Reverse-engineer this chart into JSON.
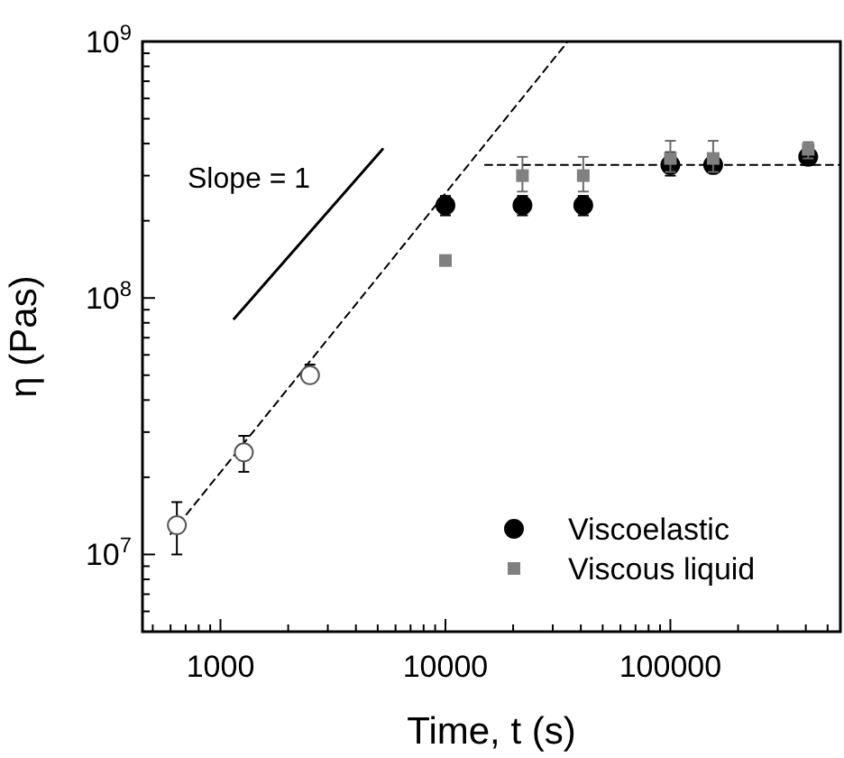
{
  "chart_data": {
    "type": "scatter",
    "xlabel": "Time, t (s)",
    "ylabel": "η (Pas)",
    "log": "xy",
    "grid": false,
    "legend": "bottom right",
    "xlim": [
      450,
      570000
    ],
    "ylim": [
      5000000.0,
      1000000000.0
    ],
    "xticks": [
      {
        "value": 500,
        "label": null
      },
      {
        "value": 600,
        "label": null
      },
      {
        "value": 700,
        "label": null
      },
      {
        "value": 800,
        "label": null
      },
      {
        "value": 900,
        "label": null
      },
      1000,
      {
        "value": 2000,
        "label": null
      },
      {
        "value": 3000,
        "label": null
      },
      {
        "value": 4000,
        "label": null
      },
      {
        "value": 5000,
        "label": null
      },
      {
        "value": 6000,
        "label": null
      },
      {
        "value": 7000,
        "label": null
      },
      {
        "value": 8000,
        "label": null
      },
      {
        "value": 9000,
        "label": null
      },
      10000,
      {
        "value": 20000,
        "label": null
      },
      {
        "value": 30000,
        "label": null
      },
      {
        "value": 40000,
        "label": null
      },
      {
        "value": 50000,
        "label": null
      },
      {
        "value": 60000,
        "label": null
      },
      {
        "value": 70000,
        "label": null
      },
      {
        "value": 80000,
        "label": null
      },
      {
        "value": 90000,
        "label": null
      },
      100000,
      {
        "value": 200000,
        "label": null
      },
      {
        "value": 300000,
        "label": null
      },
      {
        "value": 400000,
        "label": null
      },
      {
        "value": 500000,
        "label": null
      }
    ],
    "yticks": [
      {
        "value": 6000000.0,
        "label": null
      },
      {
        "value": 7000000.0,
        "label": null
      },
      {
        "value": 8000000.0,
        "label": null
      },
      {
        "value": 9000000.0,
        "label": null
      },
      {
        "value": 10000000.0,
        "label": "10$^{7}$"
      },
      {
        "value": 20000000.0,
        "label": null
      },
      {
        "value": 30000000.0,
        "label": null
      },
      {
        "value": 40000000.0,
        "label": null
      },
      {
        "value": 50000000.0,
        "label": null
      },
      {
        "value": 60000000.0,
        "label": null
      },
      {
        "value": 70000000.0,
        "label": null
      },
      {
        "value": 80000000.0,
        "label": null
      },
      {
        "value": 90000000.0,
        "label": null
      },
      {
        "value": 100000000.0,
        "label": "10$^{8}$"
      },
      {
        "value": 200000000.0,
        "label": null
      },
      {
        "value": 300000000.0,
        "label": null
      },
      {
        "value": 400000000.0,
        "label": null
      },
      {
        "value": 500000000.0,
        "label": null
      },
      {
        "value": 600000000.0,
        "label": null
      },
      {
        "value": 700000000.0,
        "label": null
      },
      {
        "value": 800000000.0,
        "label": null
      },
      {
        "value": 900000000.0,
        "label": null
      },
      {
        "value": 1000000000.0,
        "label": "10$^{9}$"
      }
    ],
    "annotations": [
      "Slope = 1"
    ],
    "series": [
      {
        "type": "line",
        "color": "#000000",
        "line_style": "dashed",
        "marker": "none",
        "x": [
          600,
          35000
        ],
        "values": [
          12000000.0,
          1000000000.0
        ]
      },
      {
        "type": "line",
        "color": "#000000",
        "line_style": "dashed",
        "marker": "none",
        "x": [
          15000,
          570000
        ],
        "values": [
          330000000.0,
          330000000.0
        ]
      },
      {
        "type": "line",
        "color": "#000000",
        "line_style": "solid",
        "marker": "none",
        "x": [
          1150,
          5250
        ],
        "values": [
          83000000.0,
          380000000.0
        ]
      },
      {
        "color": "#ffffff",
        "marker": "circle",
        "x": [
          640,
          1270,
          2500
        ],
        "values": [
          13000000.0,
          25000000.0,
          50000000.0
        ],
        "errors": [
          [
            10000000.0,
            16000000.0
          ],
          [
            21000000.0,
            29000000.0
          ],
          [
            47000000.0,
            55000000.0
          ]
        ]
      },
      {
        "name": "Viscoelastic",
        "color": "#000000",
        "marker": "circle",
        "x": [
          10000,
          22000,
          41000,
          100000,
          155000,
          410000
        ],
        "values": [
          230000000.0,
          230000000.0,
          230000000.0,
          330000000.0,
          330000000.0,
          355000000.0
        ],
        "errors": [
          [
            210000000.0,
            250000000.0
          ],
          [
            210000000.0,
            250000000.0
          ],
          [
            210000000.0,
            250000000.0
          ],
          [
            300000000.0,
            370000000.0
          ],
          [
            310000000.0,
            330000000.0
          ],
          [
            330000000.0,
            355000000.0
          ]
        ]
      },
      {
        "name": "Viscous liquid",
        "color": "#808080",
        "marker": "square",
        "x": [
          10000,
          22000,
          41000,
          100000,
          155000,
          410000
        ],
        "values": [
          140000000.0,
          300000000.0,
          300000000.0,
          350000000.0,
          350000000.0,
          380000000.0
        ],
        "errors": [
          null,
          [
            260000000.0,
            355000000.0
          ],
          [
            260000000.0,
            355000000.0
          ],
          [
            310000000.0,
            410000000.0
          ],
          [
            310000000.0,
            410000000.0
          ],
          [
            350000000.0,
            405000000.0
          ]
        ]
      }
    ]
  }
}
